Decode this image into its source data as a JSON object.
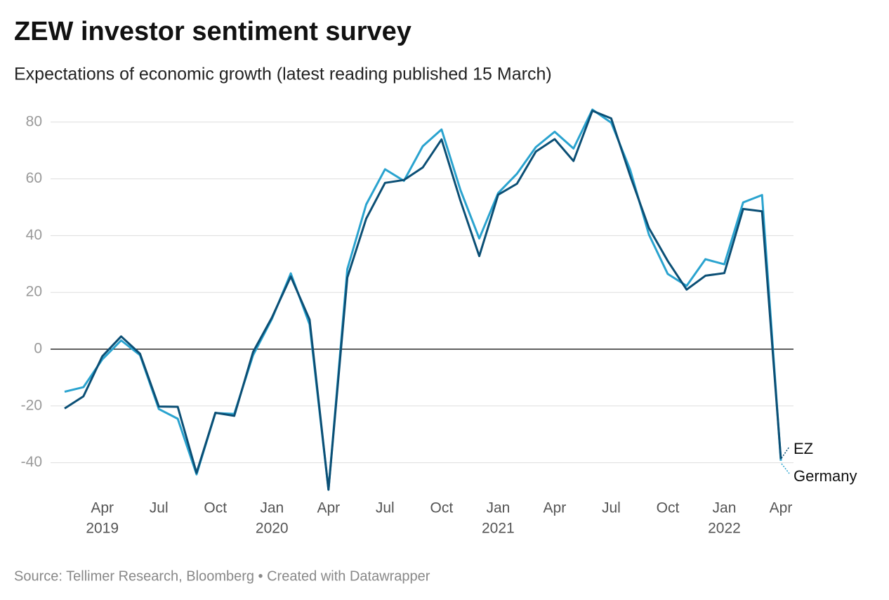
{
  "chart_data": {
    "type": "line",
    "title": "ZEW investor sentiment survey",
    "subtitle": "Expectations of economic growth (latest reading published 15 March)",
    "source": "Source: Tellimer Research, Bloomberg • Created with Datawrapper",
    "x": [
      "2019-02",
      "2019-03",
      "2019-04",
      "2019-05",
      "2019-06",
      "2019-07",
      "2019-08",
      "2019-09",
      "2019-10",
      "2019-11",
      "2019-12",
      "2020-01",
      "2020-02",
      "2020-03",
      "2020-04",
      "2020-05",
      "2020-06",
      "2020-07",
      "2020-08",
      "2020-09",
      "2020-10",
      "2020-11",
      "2020-12",
      "2021-01",
      "2021-02",
      "2021-03",
      "2021-04",
      "2021-05",
      "2021-06",
      "2021-07",
      "2021-08",
      "2021-09",
      "2021-10",
      "2021-11",
      "2021-12",
      "2022-01",
      "2022-02",
      "2022-03",
      "2022-04"
    ],
    "series": [
      {
        "name": "Germany",
        "color": "#2aa3cf",
        "values": [
          -15,
          -13.4,
          -3.6,
          3.1,
          -2.1,
          -21.1,
          -24.5,
          -44.1,
          -22.5,
          -22.8,
          -2.1,
          10.7,
          26.7,
          8.7,
          -49.5,
          28.2,
          51,
          63.4,
          59.3,
          71.5,
          77.4,
          56.1,
          39,
          55,
          61.8,
          71.2,
          76.6,
          70.7,
          84.4,
          79.8,
          63.3,
          40.4,
          26.5,
          22.3,
          31.7,
          29.9,
          51.7,
          54.3,
          -39.3
        ]
      },
      {
        "name": "EZ",
        "color": "#0b4f75",
        "values": [
          -20.9,
          -16.6,
          -2.5,
          4.5,
          -1.6,
          -20.2,
          -20.3,
          -43.6,
          -22.4,
          -23.5,
          -1,
          11.2,
          25.6,
          10.4,
          -49.5,
          25.2,
          46,
          58.6,
          59.6,
          64,
          73.9,
          52.3,
          32.8,
          54.4,
          58.3,
          69.6,
          74,
          66.3,
          84,
          81.3,
          61.2,
          42.7,
          31.1,
          21,
          25.9,
          26.8,
          49.4,
          48.6,
          -38.7
        ]
      }
    ],
    "xlim": [
      "2019-02",
      "2022-04"
    ],
    "xticks": [
      {
        "value": "2019-04",
        "label": "Apr",
        "year": "2019"
      },
      {
        "value": "2019-07",
        "label": "Jul"
      },
      {
        "value": "2019-10",
        "label": "Oct"
      },
      {
        "value": "2020-01",
        "label": "Jan",
        "year": "2020"
      },
      {
        "value": "2020-04",
        "label": "Apr"
      },
      {
        "value": "2020-07",
        "label": "Jul"
      },
      {
        "value": "2020-10",
        "label": "Oct"
      },
      {
        "value": "2021-01",
        "label": "Jan",
        "year": "2021"
      },
      {
        "value": "2021-04",
        "label": "Apr"
      },
      {
        "value": "2021-07",
        "label": "Jul"
      },
      {
        "value": "2021-10",
        "label": "Oct"
      },
      {
        "value": "2022-01",
        "label": "Jan",
        "year": "2022"
      },
      {
        "value": "2022-04",
        "label": "Apr"
      }
    ],
    "ylim": [
      -50,
      85
    ],
    "yticks": [
      -40,
      -20,
      0,
      20,
      40,
      60,
      80
    ],
    "grid": true
  }
}
